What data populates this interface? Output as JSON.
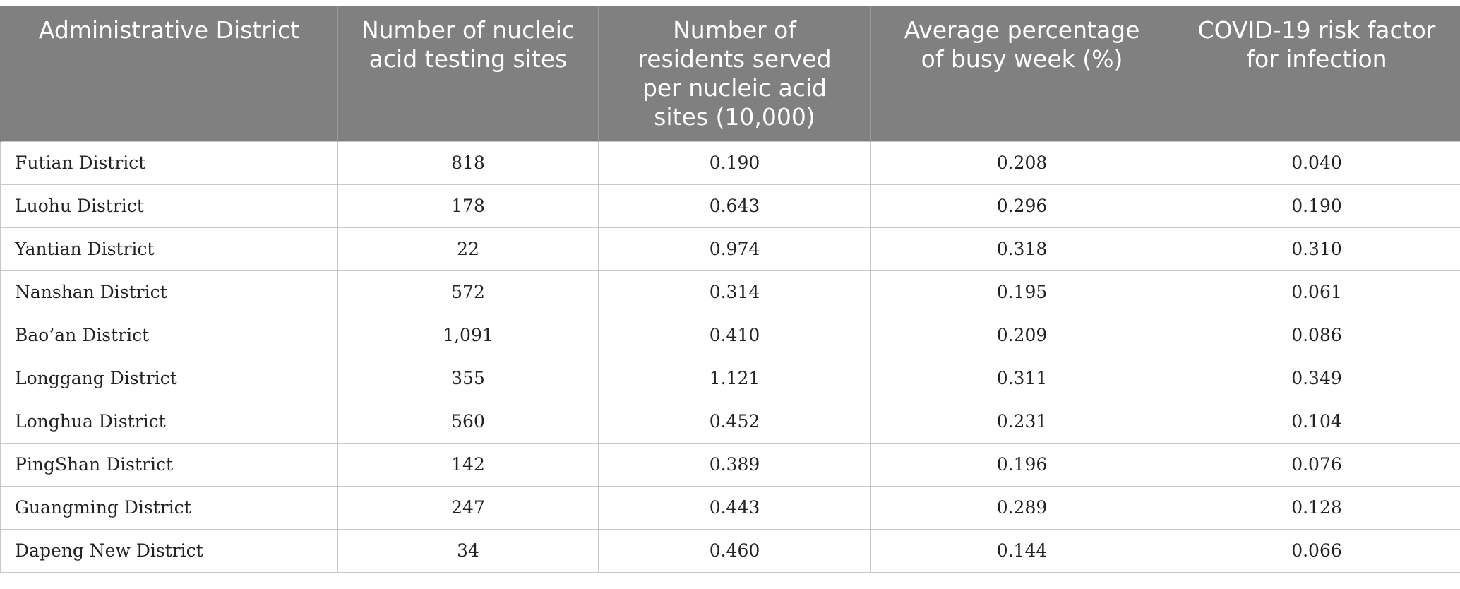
{
  "table": {
    "headers": [
      "Administrative District",
      "Number of nucleic\nacid testing sites",
      "Number of\nresidents served\nper nucleic acid\nsites (10,000)",
      "Average percentage\nof busy week (%)",
      "COVID-19 risk factor\nfor infection"
    ],
    "rows": [
      [
        "Futian District",
        "818",
        "0.190",
        "0.208",
        "0.040"
      ],
      [
        "Luohu District",
        "178",
        "0.643",
        "0.296",
        "0.190"
      ],
      [
        "Yantian District",
        "22",
        "0.974",
        "0.318",
        "0.310"
      ],
      [
        "Nanshan District",
        "572",
        "0.314",
        "0.195",
        "0.061"
      ],
      [
        "Bao’an District",
        "1,091",
        "0.410",
        "0.209",
        "0.086"
      ],
      [
        "Longgang District",
        "355",
        "1.121",
        "0.311",
        "0.349"
      ],
      [
        "Longhua District",
        "560",
        "0.452",
        "0.231",
        "0.104"
      ],
      [
        "PingShan District",
        "142",
        "0.389",
        "0.196",
        "0.076"
      ],
      [
        "Guangming District",
        "247",
        "0.443",
        "0.289",
        "0.128"
      ],
      [
        "Dapeng New District",
        "34",
        "0.460",
        "0.144",
        "0.066"
      ]
    ]
  },
  "colors": {
    "header_bg": "#7f807f",
    "header_text": "#ffffff",
    "grid_line": "#c8c8c8"
  }
}
